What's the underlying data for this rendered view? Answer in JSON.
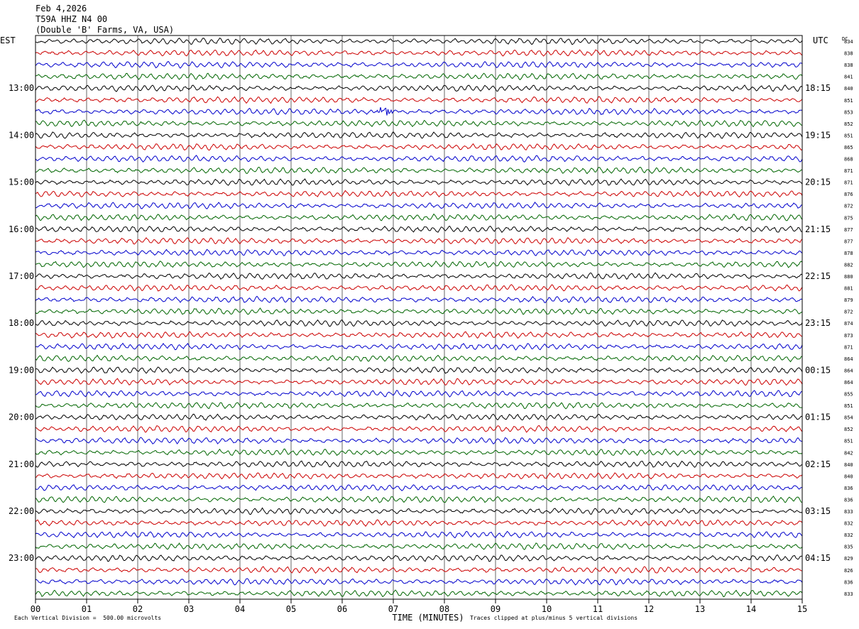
{
  "header": {
    "date": "Feb 4,2026",
    "station": "T59A HHZ N4 00",
    "location": "(Double 'B' Farms, VA, USA)"
  },
  "axis": {
    "left_timezone": "EST",
    "right_timezone": "UTC",
    "dc_label": "DC",
    "xlabel": "TIME (MINUTES)",
    "xlim": [
      0,
      15
    ],
    "x_ticks": [
      "00",
      "01",
      "02",
      "03",
      "04",
      "05",
      "06",
      "07",
      "08",
      "09",
      "10",
      "11",
      "12",
      "13",
      "14",
      "15"
    ]
  },
  "footer": {
    "scale_note": "Each Vertical Division =  500.00 microvolts",
    "clip_note": "Traces clipped at plus/minus 5 vertical divisions"
  },
  "colors": {
    "trace_cycle": [
      "#000000",
      "#cc0000",
      "#0000cc",
      "#006600"
    ],
    "grid": "#000000"
  },
  "chart_data": {
    "type": "line",
    "title": "",
    "minutes_per_trace": 15,
    "traces_per_hour": 4,
    "hour_labels_est": [
      "13:00",
      "14:00",
      "15:00",
      "16:00",
      "17:00",
      "18:00",
      "19:00",
      "20:00",
      "21:00",
      "22:00",
      "23:00"
    ],
    "hour_labels_utc": [
      "18:15",
      "19:15",
      "20:15",
      "21:15",
      "22:15",
      "23:15",
      "00:15",
      "01:15",
      "02:15",
      "03:15",
      "04:15"
    ],
    "dc_offsets": [
      834,
      838,
      838,
      841,
      840,
      851,
      853,
      852,
      851,
      865,
      868,
      871,
      871,
      876,
      872,
      875,
      877,
      877,
      878,
      882,
      880,
      881,
      879,
      872,
      874,
      873,
      871,
      864,
      864,
      864,
      855,
      851,
      854,
      852,
      851,
      842,
      840,
      840,
      836,
      836,
      833,
      832,
      832,
      835,
      829,
      826,
      836,
      833
    ],
    "event": {
      "trace_index": 6,
      "minute_start": 6.7,
      "minute_end": 7.0
    }
  }
}
